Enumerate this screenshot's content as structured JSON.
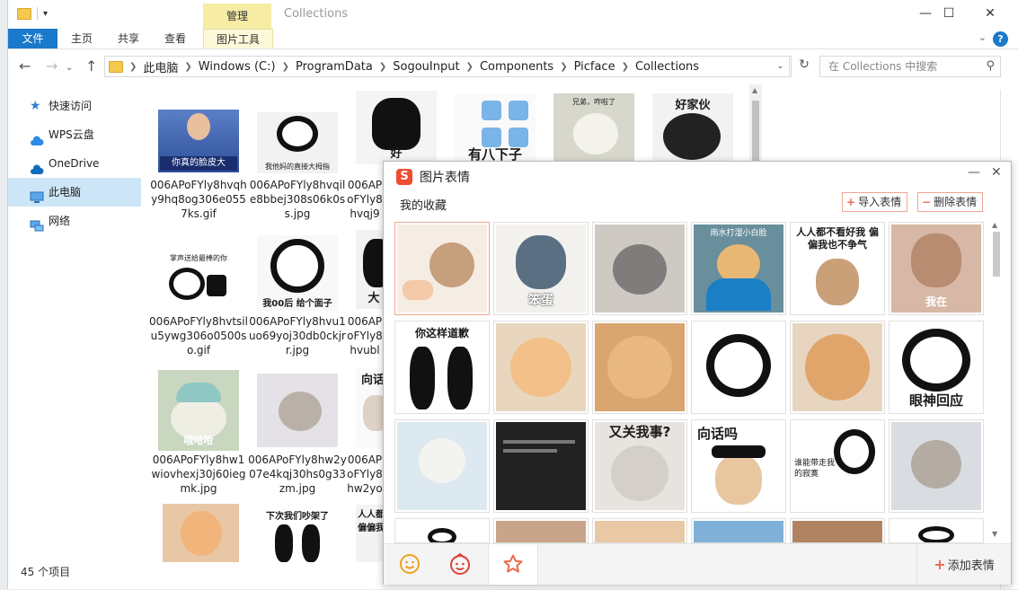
{
  "window": {
    "title": "Collections",
    "context_tab_header": "管理",
    "minimize_glyph": "—",
    "maximize_glyph": "☐",
    "close_glyph": "✕"
  },
  "ribbon": {
    "tabs": [
      "文件",
      "主页",
      "共享",
      "查看",
      "图片工具"
    ],
    "help": "?"
  },
  "address": {
    "crumbs": [
      "此电脑",
      "Windows (C:)",
      "ProgramData",
      "SogouInput",
      "Components",
      "Picface",
      "Collections"
    ],
    "search_placeholder": "在 Collections 中搜索"
  },
  "nav": {
    "items": [
      "快速访问",
      "WPS云盘",
      "OneDrive",
      "此电脑",
      "网络"
    ]
  },
  "files": [
    {
      "name": "006APoFYly8hvqhy9hq8og306e0557ks.gif",
      "caption": "你真的脸皮大"
    },
    {
      "name": "006APoFYly8hvqile8bbej308s06k0ss.jpg",
      "caption": "我他妈的直接大拇指"
    },
    {
      "name": "006APoFYly8hvqj9bt0s",
      "caption": "好"
    },
    {
      "name": "",
      "caption": "有八下子"
    },
    {
      "name": "",
      "caption": "兄弟，咋啦了"
    },
    {
      "name": "",
      "caption": "好家伙"
    },
    {
      "name": "006APoFYly8hvtsilu5ywg306o0500so.gif",
      "caption": "掌声送给最棒的你"
    },
    {
      "name": "006APoFYly8hvu1uo69yoj30db0ckjrr.jpg",
      "caption": "我00后 给个面子"
    },
    {
      "name": "006APoFYly8hvublbr06",
      "caption": "大"
    },
    {
      "name": "006APoFYly8hw1wiovhexj30j60iegmk.jpg",
      "caption": "哦哈哈"
    },
    {
      "name": "006APoFYly8hw2y07e4kqj30hs0g33zm.jpg",
      "caption": ""
    },
    {
      "name": "006APoFYly8hw2yo408",
      "caption": "向话"
    },
    {
      "name": "",
      "caption": ""
    },
    {
      "name": "",
      "caption": "下次我们吵架了"
    },
    {
      "name": "",
      "caption": "人人都偏偏我"
    }
  ],
  "status": {
    "item_count": "45 个项目"
  },
  "panel": {
    "title": "图片表情",
    "logo": "S",
    "subtitle": "我的收藏",
    "import_label": "导入表情",
    "delete_label": "删除表情",
    "add_label": "添加表情",
    "stickers": [
      {
        "caption": ""
      },
      {
        "caption": "笨蛋"
      },
      {
        "caption": ""
      },
      {
        "caption": "雨水打湿小白脸"
      },
      {
        "caption": "人人都不看好我 偏偏我也不争气"
      },
      {
        "caption": "我在"
      },
      {
        "caption": "你这样道歉"
      },
      {
        "caption": ""
      },
      {
        "caption": ""
      },
      {
        "caption": ""
      },
      {
        "caption": ""
      },
      {
        "caption": "眼神回应"
      },
      {
        "caption": ""
      },
      {
        "caption": ""
      },
      {
        "caption": "又关我事?"
      },
      {
        "caption": "向话吗"
      },
      {
        "caption": "谁能带走我的寂寞"
      },
      {
        "caption": ""
      },
      {
        "caption": ""
      },
      {
        "caption": ""
      },
      {
        "caption": ""
      },
      {
        "caption": ""
      },
      {
        "caption": ""
      },
      {
        "caption": ""
      }
    ]
  }
}
